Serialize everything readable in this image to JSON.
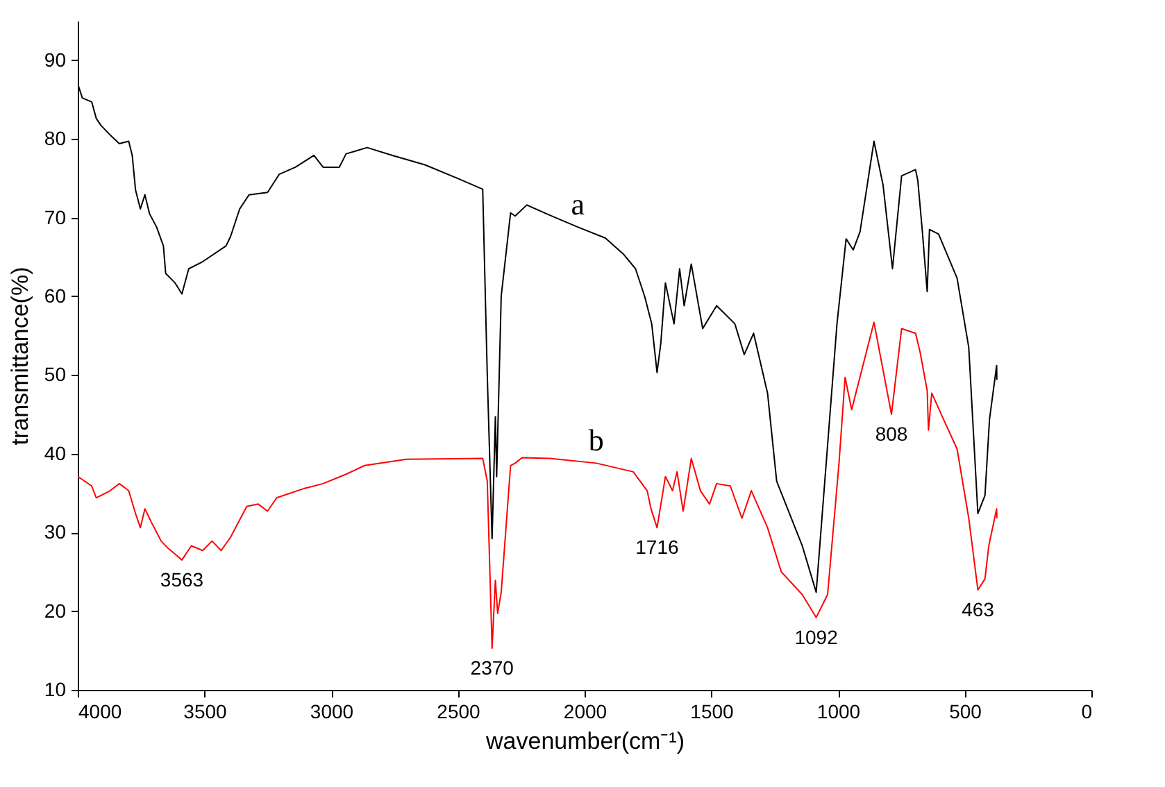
{
  "chart_data": {
    "type": "line",
    "xlabel": "wavenumber(cm⁻¹)",
    "ylabel": "transmittance(%)",
    "xlim": [
      4000,
      0
    ],
    "xticks": [
      4000,
      3500,
      3000,
      2500,
      2000,
      1500,
      1000,
      500,
      0
    ],
    "ylim": [
      10,
      95
    ],
    "yticks": [
      10,
      20,
      30,
      40,
      50,
      60,
      70,
      80,
      90
    ],
    "series": [
      {
        "color": "#000000",
        "x": [
          4000,
          3982,
          3945,
          3927,
          3908,
          3872,
          3836,
          3799,
          3785,
          3772,
          3753,
          3735,
          3717,
          3689,
          3662,
          3653,
          3616,
          3589,
          3562,
          3507,
          3415,
          3397,
          3361,
          3324,
          3251,
          3205,
          3141,
          3068,
          3032,
          2968,
          2941,
          2858,
          2758,
          2630,
          2502,
          2402,
          2384,
          2365,
          2352,
          2347,
          2329,
          2292,
          2274,
          2228,
          2137,
          2027,
          1918,
          1845,
          1799,
          1763,
          1735,
          1714,
          1699,
          1681,
          1647,
          1625,
          1607,
          1579,
          1534,
          1479,
          1407,
          1370,
          1333,
          1278,
          1242,
          1141,
          1086,
          1004,
          968,
          940,
          913,
          858,
          822,
          785,
          749,
          694,
          685,
          667,
          648,
          639,
          603,
          530,
          484,
          448,
          420,
          402,
          374,
          373
        ],
        "values": [
          87.0,
          85.2,
          84.7,
          82.6,
          81.7,
          80.5,
          79.4,
          79.7,
          77.9,
          73.5,
          71.1,
          72.9,
          70.5,
          68.8,
          66.4,
          62.9,
          61.7,
          60.3,
          63.5,
          64.4,
          66.4,
          67.6,
          71.1,
          72.9,
          73.2,
          75.5,
          76.4,
          77.9,
          76.4,
          76.4,
          78.1,
          78.9,
          77.9,
          76.7,
          75.0,
          73.6,
          50,
          29.2,
          44.7,
          37.1,
          60,
          70.6,
          70.2,
          71.6,
          70.3,
          68.8,
          67.4,
          65.3,
          63.5,
          60.0,
          56.5,
          50.3,
          54.1,
          61.7,
          56.5,
          63.5,
          58.8,
          64.1,
          55.9,
          58.8,
          56.5,
          52.6,
          55.3,
          47.7,
          36.5,
          28.3,
          22.4,
          56.5,
          67.3,
          65.9,
          68.2,
          79.7,
          74.1,
          63.5,
          75.3,
          76.1,
          74.7,
          68.2,
          60.6,
          68.5,
          67.9,
          62.3,
          53.5,
          32.4,
          34.7,
          44.4,
          51.2,
          49.4
        ]
      },
      {
        "color": "#ff0000",
        "x": [
          4000,
          3945,
          3927,
          3872,
          3836,
          3799,
          3772,
          3753,
          3735,
          3708,
          3671,
          3644,
          3589,
          3552,
          3507,
          3470,
          3434,
          3397,
          3333,
          3288,
          3251,
          3215,
          3105,
          3032,
          2941,
          2868,
          2703,
          2402,
          2384,
          2365,
          2352,
          2343,
          2329,
          2292,
          2274,
          2247,
          2137,
          1954,
          1808,
          1753,
          1738,
          1714,
          1681,
          1653,
          1635,
          1611,
          1579,
          1543,
          1507,
          1479,
          1425,
          1379,
          1342,
          1278,
          1224,
          1141,
          1086,
          1041,
          996,
          972,
          946,
          858,
          789,
          749,
          694,
          676,
          648,
          643,
          630,
          584,
          530,
          484,
          448,
          420,
          405,
          374,
          373
        ],
        "values": [
          37.1,
          35.9,
          34.4,
          35.3,
          36.2,
          35.3,
          32.4,
          30.6,
          33.0,
          31.2,
          28.9,
          28.0,
          26.5,
          28.3,
          27.7,
          28.9,
          27.7,
          29.4,
          33.3,
          33.6,
          32.7,
          34.4,
          35.6,
          36.2,
          37.4,
          38.5,
          39.3,
          39.4,
          36.5,
          15.3,
          23.9,
          19.7,
          22.4,
          38.5,
          38.8,
          39.5,
          39.4,
          38.8,
          37.7,
          35.3,
          33.0,
          30.6,
          37.1,
          35.3,
          37.7,
          32.7,
          39.4,
          35.3,
          33.6,
          36.2,
          35.9,
          31.8,
          35.3,
          30.6,
          25.0,
          22.1,
          19.2,
          22.1,
          38.8,
          49.7,
          45.6,
          56.7,
          45.0,
          55.9,
          55.3,
          52.9,
          48.0,
          43.0,
          47.7,
          44.4,
          40.6,
          31.8,
          22.7,
          24.1,
          28.3,
          33.0,
          31.8
        ]
      }
    ],
    "annotations": [
      {
        "text": "a",
        "x": 2027,
        "y": 68.8
      },
      {
        "text": "b",
        "x": 1954,
        "y": 38.8
      },
      {
        "text": "3563",
        "x": 3589,
        "y": 26.5
      },
      {
        "text": "2370",
        "x": 2365,
        "y": 15.3
      },
      {
        "text": "1716",
        "x": 1714,
        "y": 30.6
      },
      {
        "text": "1092",
        "x": 1086,
        "y": 19.2
      },
      {
        "text": "808",
        "x": 789,
        "y": 45.0
      },
      {
        "text": "463",
        "x": 448,
        "y": 22.7
      }
    ]
  }
}
